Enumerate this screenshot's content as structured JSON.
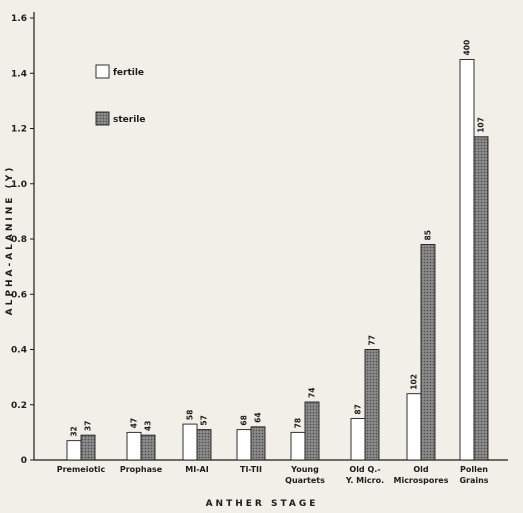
{
  "chart_data": {
    "type": "bar",
    "xlabel": "ANTHER STAGE",
    "ylabel": "ALPHA-ALANINE (Y)",
    "ylim": [
      0,
      1.6
    ],
    "yticks": [
      "0",
      "0.2",
      "0.4",
      "0.6",
      "0.8",
      "1.0",
      "1.2",
      "1.4",
      "1.6"
    ],
    "ytick_values": [
      0,
      0.2,
      0.4,
      0.6,
      0.8,
      1.0,
      1.2,
      1.4,
      1.6
    ],
    "categories": [
      [
        "Premeiotic"
      ],
      [
        "Prophase"
      ],
      [
        "MI-AI"
      ],
      [
        "TI-TII"
      ],
      [
        "Young",
        "Quartets"
      ],
      [
        "Old Q.-",
        "Y. Micro."
      ],
      [
        "Old",
        "Microspores"
      ],
      [
        "Pollen",
        "Grains"
      ]
    ],
    "series": [
      {
        "name": "fertile",
        "color": "#ffffff",
        "values": [
          0.07,
          0.1,
          0.13,
          0.11,
          0.1,
          0.15,
          0.24,
          1.45
        ],
        "labels": [
          "32",
          "47",
          "58",
          "68",
          "78",
          "87",
          "102",
          "400"
        ]
      },
      {
        "name": "sterile",
        "color": "#7a7a7a",
        "values": [
          0.09,
          0.09,
          0.11,
          0.12,
          0.21,
          0.4,
          0.78,
          1.17
        ],
        "labels": [
          "37",
          "43",
          "57",
          "64",
          "74",
          "77",
          "85",
          "107"
        ]
      }
    ],
    "legend_position": "top-left",
    "grid": false
  }
}
